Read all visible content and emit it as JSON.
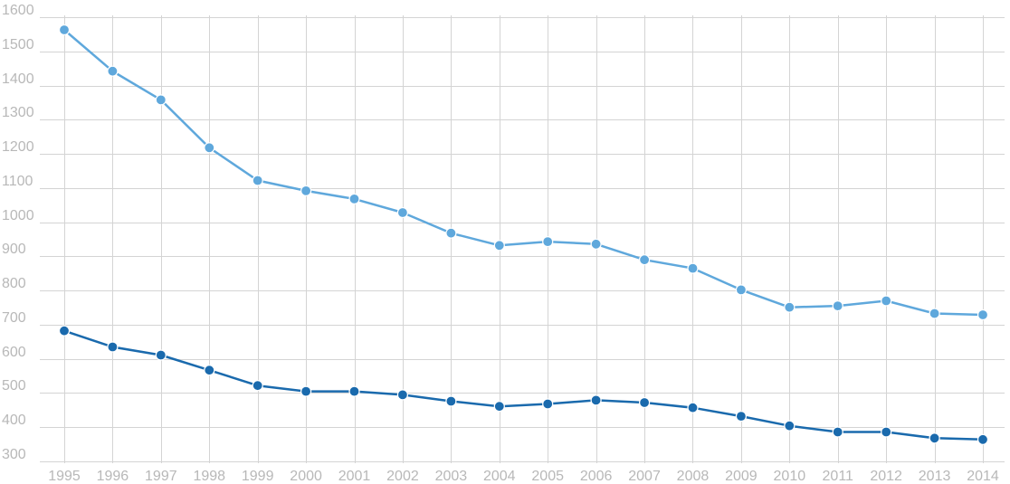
{
  "chart_data": {
    "type": "line",
    "x": [
      "1995",
      "1996",
      "1997",
      "1998",
      "1999",
      "2000",
      "2001",
      "2002",
      "2003",
      "2004",
      "2005",
      "2006",
      "2007",
      "2008",
      "2009",
      "2010",
      "2011",
      "2012",
      "2013",
      "2014"
    ],
    "ylim": [
      300,
      1600
    ],
    "y_ticks": [
      300,
      400,
      500,
      600,
      700,
      800,
      900,
      1000,
      1100,
      1200,
      1300,
      1400,
      1500,
      1600
    ],
    "grid": true,
    "series": [
      {
        "color": "#5fa8dc",
        "values": [
          1563,
          1442,
          1358,
          1218,
          1122,
          1092,
          1068,
          1028,
          968,
          932,
          943,
          936,
          890,
          865,
          802,
          751,
          755,
          770,
          733,
          729
        ]
      },
      {
        "color": "#1a6aad",
        "values": [
          682,
          635,
          611,
          567,
          522,
          505,
          505,
          495,
          476,
          461,
          468,
          479,
          472,
          457,
          432,
          404,
          386,
          386,
          368,
          364
        ]
      }
    ],
    "colors": {
      "grid": "#d4d4d4",
      "tick_text": "#b8b8b8"
    }
  }
}
